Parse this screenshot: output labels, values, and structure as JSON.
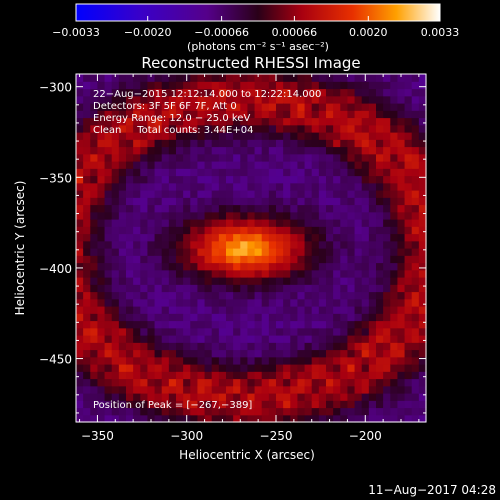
{
  "chart_data": {
    "type": "heatmap",
    "title": "Reconstructed RHESSI Image",
    "xlabel": "Heliocentric X (arcsec)",
    "ylabel": "Heliocentric Y (arcsec)",
    "xlim": [
      -362,
      -166
    ],
    "ylim": [
      -485,
      -293
    ],
    "x_ticks": [
      -350,
      -300,
      -250,
      -200
    ],
    "x_tick_labels": [
      "−350",
      "−300",
      "−250",
      "−200"
    ],
    "y_ticks": [
      -300,
      -350,
      -400,
      -450
    ],
    "y_tick_labels": [
      "−300",
      "−350",
      "−400",
      "−450"
    ],
    "colorbar": {
      "min": -0.0033,
      "max": 0.0033,
      "ticks": [
        -0.0033,
        -0.002,
        -0.00066,
        0.00066,
        0.002,
        0.0033
      ],
      "tick_labels": [
        "−0.0033",
        "−0.0020",
        "−0.00066",
        "0.00066",
        "0.0020",
        "0.0033"
      ],
      "units_label": "(photons cm⁻² s⁻¹ asec⁻²)"
    },
    "annotations": [
      "22−Aug−2015 12:12:14.000 to 12:22:14.000",
      "Detectors: 3F 5F 6F 7F, Att 0",
      "Energy Range: 12.0 − 25.0 keV",
      "Clean     Total counts: 3.44E+04"
    ],
    "peak_label": "Position of Peak = [−267,−389]",
    "peak": {
      "x": -267,
      "y": -389,
      "value": 0.0033
    },
    "source_sigma_arcsec": {
      "x": 24,
      "y": 12
    },
    "background_level": -0.0008,
    "ring_level": 0.0009
  },
  "footer_timestamp": "11−Aug−2017 04:28"
}
